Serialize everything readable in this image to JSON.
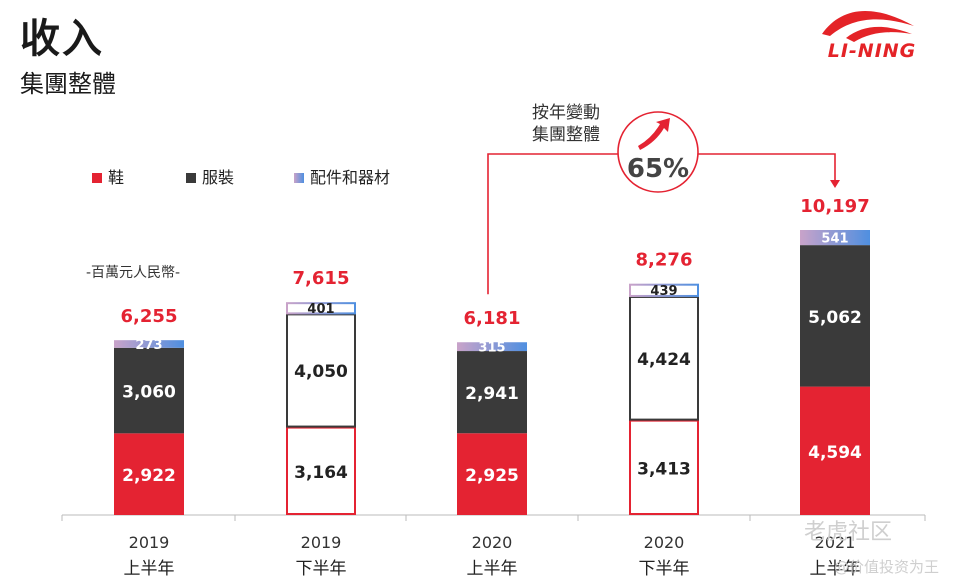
{
  "header": {
    "title": "收入",
    "subtitle": "集團整體",
    "logo_text": "LI-NING"
  },
  "legend": [
    {
      "name": "鞋",
      "color": "#e42332"
    },
    {
      "name": "服裝",
      "color": "#3a3a3a"
    },
    {
      "name": "配件和器材",
      "color": "#8a9fd8"
    }
  ],
  "unit_label": "-百萬元人民幣-",
  "change": {
    "label_line1": "按年變動",
    "label_line2": "集團整體",
    "value": "65%"
  },
  "watermark": {
    "line1": "老虎社区",
    "line2": "@价值投资为王"
  },
  "chart_data": {
    "type": "bar",
    "stacked": true,
    "categories": [
      {
        "year": "2019",
        "half": "上半年"
      },
      {
        "year": "2019",
        "half": "下半年"
      },
      {
        "year": "2020",
        "half": "上半年"
      },
      {
        "year": "2020",
        "half": "下半年"
      },
      {
        "year": "2021",
        "half": "上半年"
      }
    ],
    "series": [
      {
        "name": "鞋",
        "values": [
          2922,
          3164,
          2925,
          3413,
          4594
        ],
        "labels": [
          "2,922",
          "3,164",
          "2,925",
          "3,413",
          "4,594"
        ]
      },
      {
        "name": "服裝",
        "values": [
          3060,
          4050,
          2941,
          4424,
          5062
        ],
        "labels": [
          "3,060",
          "4,050",
          "2,941",
          "4,424",
          "5,062"
        ]
      },
      {
        "name": "配件和器材",
        "values": [
          273,
          401,
          315,
          439,
          541
        ],
        "labels": [
          "273",
          "401",
          "315",
          "439",
          "541"
        ]
      }
    ],
    "totals": [
      6255,
      7615,
      6181,
      8276,
      10197
    ],
    "total_labels": [
      "6,255",
      "7,615",
      "6,181",
      "8,276",
      "10,197"
    ],
    "outlined_bars": [
      false,
      true,
      false,
      true,
      false
    ],
    "ylim": [
      0,
      10197
    ]
  }
}
